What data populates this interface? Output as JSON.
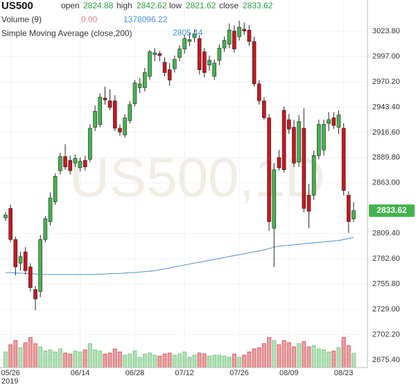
{
  "chart_data": {
    "type": "candlestick",
    "title": "US500",
    "watermark": "US500,1D",
    "header": {
      "open": "open",
      "high": "high",
      "low": "low",
      "close": "close"
    },
    "volume_title": "Volume (9)",
    "volume_ma": "0.00",
    "sma_title": "Simple Moving Average (close,200)",
    "year": "2019",
    "categories": [
      null,
      "05/26",
      null,
      null,
      null,
      null,
      null,
      null,
      null,
      null,
      null,
      null,
      null,
      null,
      null,
      "06/14",
      null,
      null,
      null,
      null,
      null,
      null,
      null,
      null,
      null,
      null,
      "06/28",
      null,
      null,
      null,
      null,
      null,
      null,
      null,
      null,
      null,
      "07/12",
      null,
      null,
      null,
      null,
      null,
      null,
      null,
      null,
      null,
      null,
      "07/26",
      null,
      null,
      null,
      null,
      null,
      null,
      null,
      null,
      null,
      "08/09",
      null,
      null,
      null,
      null,
      null,
      null,
      null,
      null,
      null,
      null,
      "08/23",
      null,
      null
    ],
    "open": [
      2826,
      2836,
      2803,
      2778,
      2790,
      2774,
      2750,
      2748,
      2803,
      2822,
      2843,
      2876,
      2891,
      2887,
      2884,
      2879,
      2887,
      2888,
      2922,
      2925,
      2953,
      2950,
      2950,
      2921,
      2914,
      2929,
      2947,
      2964,
      2964,
      2976,
      2999,
      3000,
      2991,
      2983,
      2984,
      2996,
      3005,
      3013,
      3017,
      3016,
      3002,
      2988,
      2976,
      2993,
      3006,
      3010,
      3024,
      3018,
      3026,
      3025,
      3013,
      2968,
      2950,
      2932,
      2815,
      2890,
      2940,
      2930,
      2922,
      2885,
      2921,
      2850,
      2850,
      2892,
      2898,
      2926,
      2932,
      2922,
      2921,
      2850,
      2824.88
    ],
    "high": [
      2832,
      2840,
      2806,
      2790,
      2795,
      2778,
      2754,
      2808,
      2828,
      2853,
      2873,
      2895,
      2904,
      2892,
      2893,
      2890,
      2892,
      2925,
      2945,
      2958,
      2965,
      2962,
      2956,
      2925,
      2936,
      2950,
      2972,
      2974,
      2985,
      3004,
      3006,
      3003,
      2996,
      2990,
      2998,
      3009,
      3020,
      3022,
      3026,
      3020,
      3006,
      2998,
      2994,
      3010,
      3018,
      3032,
      3030,
      3035,
      3033,
      3030,
      3018,
      2972,
      2954,
      2936,
      2884,
      2898,
      2944,
      2936,
      2930,
      2935,
      2942,
      2862,
      2897,
      2930,
      2930,
      2938,
      2938,
      2940,
      2926,
      2854,
      2842.62
    ],
    "low": [
      2823,
      2800,
      2765,
      2770,
      2766,
      2748,
      2728,
      2742,
      2800,
      2818,
      2840,
      2872,
      2877,
      2872,
      2880,
      2875,
      2876,
      2885,
      2918,
      2922,
      2946,
      2940,
      2918,
      2913,
      2911,
      2926,
      2944,
      2958,
      2960,
      2972,
      2992,
      2992,
      2976,
      2966,
      2980,
      2992,
      3000,
      3008,
      3012,
      2978,
      2975,
      2982,
      2972,
      2988,
      3002,
      3006,
      3001,
      3014,
      3020,
      3008,
      2965,
      2946,
      2930,
      2812,
      2774,
      2876,
      2874,
      2915,
      2880,
      2880,
      2832,
      2815,
      2845,
      2888,
      2892,
      2918,
      2920,
      2915,
      2850,
      2810,
      2821.62
    ],
    "close": [
      2829,
      2803,
      2774,
      2785,
      2770,
      2752,
      2740,
      2803,
      2825,
      2847,
      2870,
      2891,
      2880,
      2876,
      2889,
      2886,
      2880,
      2921,
      2939,
      2954,
      2951,
      2943,
      2921,
      2917,
      2932,
      2946,
      2969,
      2968,
      2980,
      3002,
      3001,
      2998,
      2980,
      2972,
      2994,
      3005,
      3016,
      3015,
      3021,
      2983,
      2980,
      2993,
      2990,
      3006,
      3014,
      3025,
      3005,
      3028,
      3024,
      3013,
      2968,
      2950,
      2932,
      2822,
      2877,
      2879,
      2877,
      2920,
      2884,
      2928,
      2836,
      2833,
      2892,
      2925,
      2925,
      2930,
      2924,
      2935,
      2855,
      2822,
      2833.62
    ],
    "volume": [
      1500000,
      2200000,
      2600000,
      1900000,
      2400000,
      2900000,
      2300000,
      2000000,
      1600000,
      1700000,
      1500000,
      1800000,
      1400000,
      1300000,
      1600000,
      1500000,
      1700000,
      2300000,
      1700000,
      1600000,
      1300000,
      1400000,
      1800000,
      1500000,
      1200000,
      1300000,
      1600000,
      1000000,
      1300000,
      1400000,
      1200000,
      1100000,
      1300000,
      1400000,
      1200000,
      1300000,
      1500000,
      1000000,
      1200000,
      1400000,
      1300000,
      1100000,
      1200000,
      1200000,
      1100000,
      1000000,
      1300000,
      1000000,
      1200000,
      1500000,
      1800000,
      1900000,
      2300000,
      2900000,
      2600000,
      2200000,
      2600000,
      2400000,
      2000000,
      2300000,
      2500000,
      2000000,
      2100000,
      1800000,
      1700000,
      1500000,
      1600000,
      1900000,
      2900000,
      2100000,
      1378096.22
    ],
    "volume_lim": [
      0,
      4000000
    ],
    "sma": [
      2768,
      2768,
      2767.5,
      2767.5,
      2767,
      2767,
      2766.5,
      2766,
      2766,
      2766,
      2766,
      2766,
      2766,
      2766,
      2766,
      2766,
      2766,
      2766,
      2766,
      2766.5,
      2766.5,
      2767,
      2767,
      2767,
      2767.5,
      2768,
      2768,
      2768.5,
      2769,
      2769.5,
      2770,
      2771,
      2772,
      2773,
      2774,
      2775,
      2776,
      2777,
      2778,
      2779,
      2780,
      2781,
      2782,
      2783,
      2784,
      2785,
      2786,
      2787,
      2788,
      2789,
      2790,
      2791,
      2792,
      2793.5,
      2795,
      2796,
      2796.5,
      2797,
      2797.5,
      2798,
      2798.5,
      2799,
      2799.5,
      2800,
      2800.5,
      2801,
      2801.5,
      2802,
      2803,
      2804,
      2805.44
    ],
    "up_color": "#44b34f",
    "down_color": "#c9171e",
    "sma_color": "#4a90d9",
    "volume_color": "#4a90d9",
    "ylim": [
      2667.3,
      3056.9
    ],
    "yticks": [
      {
        "value": 3023.8,
        "label": "3023.80"
      },
      {
        "value": 2997,
        "label": "2997.00"
      },
      {
        "value": 2970.2,
        "label": "2970.20"
      },
      {
        "value": 2943.4,
        "label": "2943.40"
      },
      {
        "value": 2916.6,
        "label": "2916.60"
      },
      {
        "value": 2889.8,
        "label": "2889.80"
      },
      {
        "value": 2863,
        "label": "2863.00"
      },
      {
        "value": 2809.4,
        "label": "2809.40"
      },
      {
        "value": 2782.6,
        "label": "2782.60"
      },
      {
        "value": 2755.8,
        "label": "2755.80"
      },
      {
        "value": 2729,
        "label": "2729.00"
      },
      {
        "value": 2702.2,
        "label": "2702.20"
      },
      {
        "value": 2675.4,
        "label": "2675.40"
      }
    ],
    "grid": true
  }
}
